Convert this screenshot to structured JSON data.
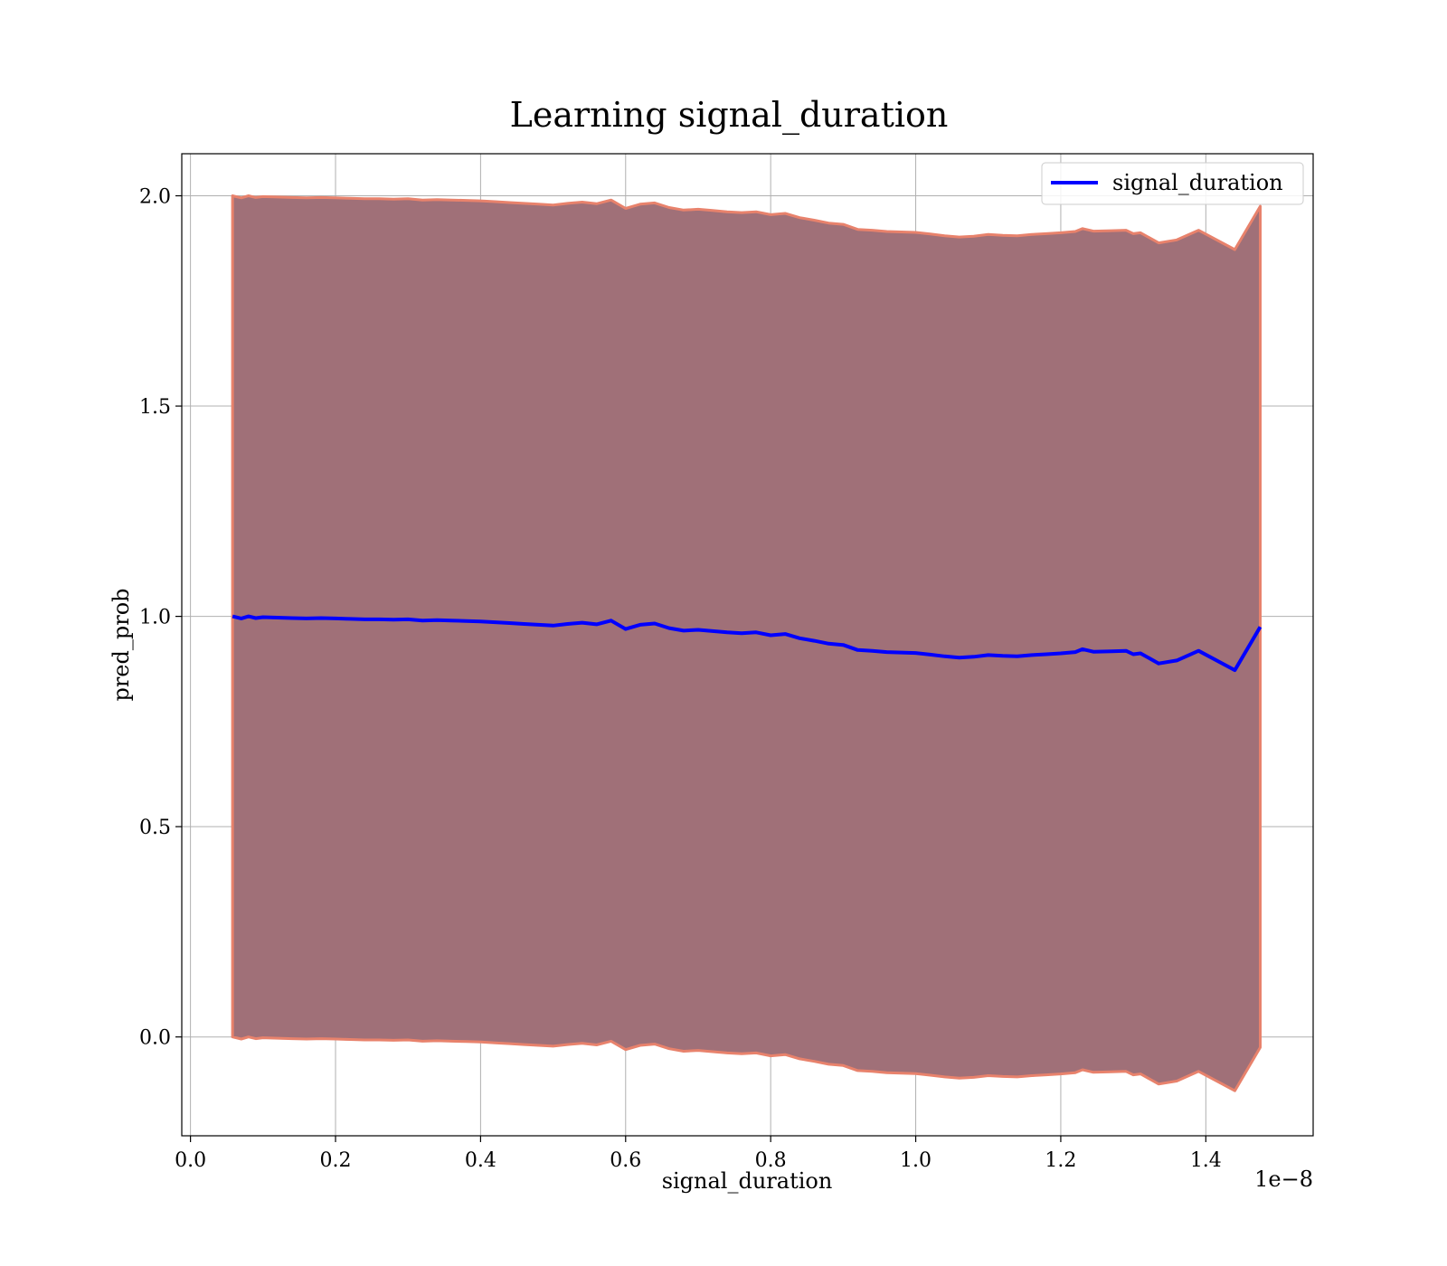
{
  "chart_data": {
    "type": "line",
    "title": "Learning signal_duration",
    "xlabel": "signal_duration",
    "ylabel": "pred_prob",
    "x_offset_text": "1e−8",
    "xlim": [
      -0.012,
      1.548
    ],
    "ylim": [
      -0.235,
      2.1
    ],
    "grid": true,
    "legend_position": "top-right",
    "x_ticks": [
      0.0,
      0.2,
      0.4,
      0.6,
      0.8,
      1.0,
      1.2,
      1.4
    ],
    "x_tick_labels": [
      "0.0",
      "0.2",
      "0.4",
      "0.6",
      "0.8",
      "1.0",
      "1.2",
      "1.4"
    ],
    "y_ticks": [
      0.0,
      0.5,
      1.0,
      1.5,
      2.0
    ],
    "y_tick_labels": [
      "0.0",
      "0.5",
      "1.0",
      "1.5",
      "2.0"
    ],
    "series": [
      {
        "name": "signal_duration",
        "color": "#0000ff",
        "band_fill": "#a07078",
        "band_edge": "#e8826c",
        "band_halfwidth": 1.0,
        "x": [
          0.058,
          0.07,
          0.08,
          0.09,
          0.1,
          0.12,
          0.14,
          0.16,
          0.18,
          0.2,
          0.22,
          0.24,
          0.26,
          0.28,
          0.3,
          0.32,
          0.34,
          0.36,
          0.38,
          0.4,
          0.42,
          0.44,
          0.46,
          0.48,
          0.5,
          0.52,
          0.54,
          0.56,
          0.58,
          0.6,
          0.62,
          0.64,
          0.66,
          0.68,
          0.7,
          0.72,
          0.74,
          0.76,
          0.78,
          0.8,
          0.82,
          0.84,
          0.86,
          0.88,
          0.9,
          0.92,
          0.94,
          0.96,
          0.98,
          1.0,
          1.02,
          1.04,
          1.06,
          1.08,
          1.1,
          1.12,
          1.14,
          1.16,
          1.18,
          1.2,
          1.22,
          1.23,
          1.245,
          1.27,
          1.29,
          1.3,
          1.31,
          1.335,
          1.36,
          1.39,
          1.44,
          1.475
        ],
        "y": [
          1.0,
          0.995,
          1.0,
          0.996,
          0.998,
          0.997,
          0.996,
          0.995,
          0.996,
          0.995,
          0.994,
          0.993,
          0.993,
          0.992,
          0.993,
          0.99,
          0.991,
          0.99,
          0.989,
          0.988,
          0.986,
          0.984,
          0.982,
          0.98,
          0.978,
          0.982,
          0.985,
          0.981,
          0.99,
          0.97,
          0.98,
          0.983,
          0.972,
          0.966,
          0.968,
          0.965,
          0.962,
          0.96,
          0.962,
          0.955,
          0.958,
          0.948,
          0.942,
          0.935,
          0.932,
          0.92,
          0.918,
          0.915,
          0.914,
          0.913,
          0.909,
          0.905,
          0.902,
          0.904,
          0.908,
          0.906,
          0.905,
          0.908,
          0.91,
          0.912,
          0.915,
          0.922,
          0.916,
          0.917,
          0.918,
          0.91,
          0.912,
          0.888,
          0.895,
          0.918,
          0.872,
          0.975
        ]
      }
    ]
  }
}
